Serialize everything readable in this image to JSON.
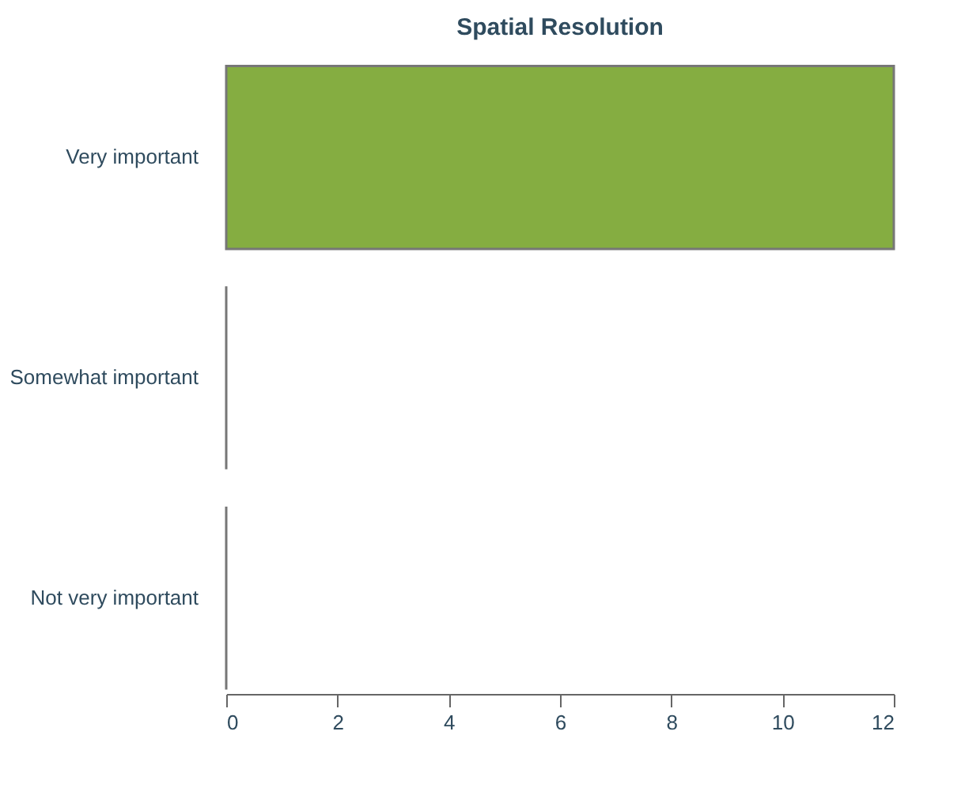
{
  "chart_data": {
    "type": "bar",
    "orientation": "horizontal",
    "title": "Spatial Resolution",
    "categories": [
      "Very important",
      "Somewhat important",
      "Not very important"
    ],
    "values": [
      12,
      0,
      0
    ],
    "color": "#85ad41",
    "xlim": [
      0,
      12
    ],
    "xticks": [
      0,
      2,
      4,
      6,
      8,
      10,
      12
    ],
    "grid": false
  }
}
